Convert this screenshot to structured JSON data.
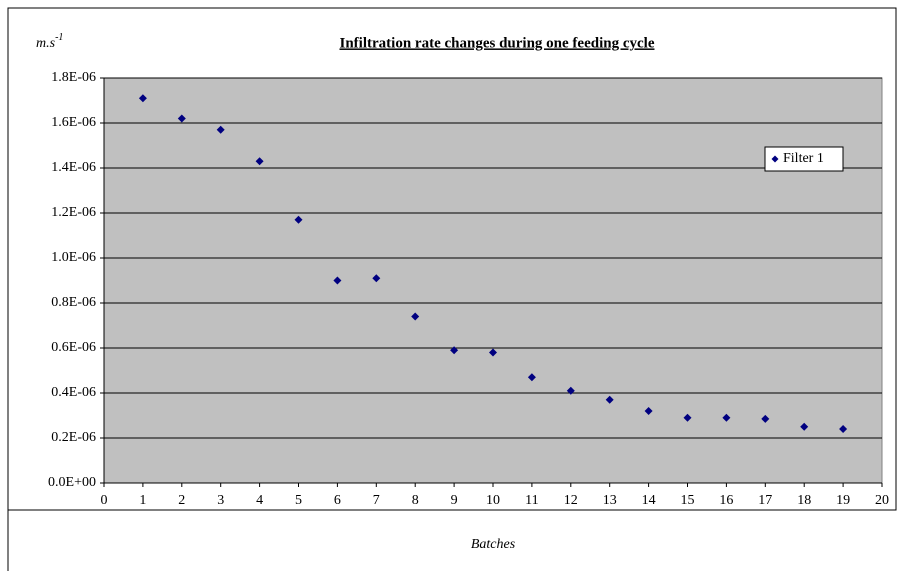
{
  "chart_data": {
    "type": "scatter",
    "title": "Infiltration rate changes during one feeding cycle",
    "y_label": "m.s",
    "y_label_superscript": "-1",
    "x_label": "Batches",
    "series": [
      {
        "name": "Filter 1",
        "color": "#000080",
        "x": [
          1,
          2,
          3,
          4,
          5,
          6,
          7,
          8,
          9,
          10,
          11,
          12,
          13,
          14,
          15,
          16,
          17,
          18,
          19
        ],
        "values": [
          1.71e-06,
          1.62e-06,
          1.57e-06,
          1.43e-06,
          1.17e-06,
          9e-07,
          9.1e-07,
          7.4e-07,
          5.9e-07,
          5.8e-07,
          4.7e-07,
          4.1e-07,
          3.7e-07,
          3.2e-07,
          2.9e-07,
          2.9e-07,
          2.85e-07,
          2.5e-07,
          2.4e-07
        ]
      }
    ],
    "xlim": [
      0,
      20
    ],
    "xticks": [
      0,
      1,
      2,
      3,
      4,
      5,
      6,
      7,
      8,
      9,
      10,
      11,
      12,
      13,
      14,
      15,
      16,
      17,
      18,
      19,
      20
    ],
    "ylim": [
      0,
      1.8e-06
    ],
    "yticks": [
      {
        "value": 0,
        "label": "0.0E+00"
      },
      {
        "value": 2e-07,
        "label": "0.2E-06"
      },
      {
        "value": 4e-07,
        "label": "0.4E-06"
      },
      {
        "value": 6e-07,
        "label": "0.6E-06"
      },
      {
        "value": 8e-07,
        "label": "0.8E-06"
      },
      {
        "value": 1e-06,
        "label": "1.0E-06"
      },
      {
        "value": 1.2e-06,
        "label": "1.2E-06"
      },
      {
        "value": 1.4e-06,
        "label": "1.4E-06"
      },
      {
        "value": 1.6e-06,
        "label": "1.6E-06"
      },
      {
        "value": 1.8e-06,
        "label": "1.8E-06"
      }
    ],
    "grid": true,
    "legend": "upper right",
    "plot_background": "#c0c0c0"
  }
}
